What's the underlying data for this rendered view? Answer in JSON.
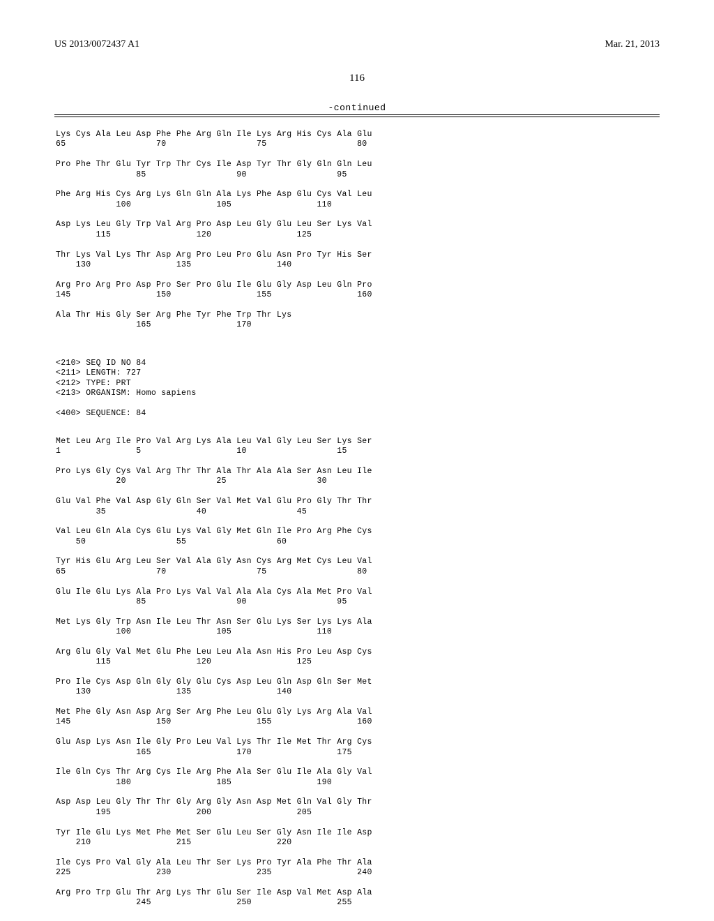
{
  "header": {
    "pub_number": "US 2013/0072437 A1",
    "pub_date": "Mar. 21, 2013"
  },
  "page_number": "116",
  "continued_label": "-continued",
  "seq83": {
    "blocks": [
      {
        "aa": "Lys Cys Ala Leu Asp Phe Phe Arg Gln Ile Lys Arg His Cys Ala Glu",
        "nums": "65                  70                  75                  80"
      },
      {
        "aa": "Pro Phe Thr Glu Tyr Trp Thr Cys Ile Asp Tyr Thr Gly Gln Gln Leu",
        "nums": "                85                  90                  95"
      },
      {
        "aa": "Phe Arg His Cys Arg Lys Gln Gln Ala Lys Phe Asp Glu Cys Val Leu",
        "nums": "            100                 105                 110"
      },
      {
        "aa": "Asp Lys Leu Gly Trp Val Arg Pro Asp Leu Gly Glu Leu Ser Lys Val",
        "nums": "        115                 120                 125"
      },
      {
        "aa": "Thr Lys Val Lys Thr Asp Arg Pro Leu Pro Glu Asn Pro Tyr His Ser",
        "nums": "    130                 135                 140"
      },
      {
        "aa": "Arg Pro Arg Pro Asp Pro Ser Pro Glu Ile Glu Gly Asp Leu Gln Pro",
        "nums": "145                 150                 155                 160"
      },
      {
        "aa": "Ala Thr His Gly Ser Arg Phe Tyr Phe Trp Thr Lys",
        "nums": "                165                 170"
      }
    ]
  },
  "seq84": {
    "header": [
      "<210> SEQ ID NO 84",
      "<211> LENGTH: 727",
      "<212> TYPE: PRT",
      "<213> ORGANISM: Homo sapiens",
      "",
      "<400> SEQUENCE: 84"
    ],
    "blocks": [
      {
        "aa": "Met Leu Arg Ile Pro Val Arg Lys Ala Leu Val Gly Leu Ser Lys Ser",
        "nums": "1               5                   10                  15"
      },
      {
        "aa": "Pro Lys Gly Cys Val Arg Thr Thr Ala Thr Ala Ala Ser Asn Leu Ile",
        "nums": "            20                  25                  30"
      },
      {
        "aa": "Glu Val Phe Val Asp Gly Gln Ser Val Met Val Glu Pro Gly Thr Thr",
        "nums": "        35                  40                  45"
      },
      {
        "aa": "Val Leu Gln Ala Cys Glu Lys Val Gly Met Gln Ile Pro Arg Phe Cys",
        "nums": "    50                  55                  60"
      },
      {
        "aa": "Tyr His Glu Arg Leu Ser Val Ala Gly Asn Cys Arg Met Cys Leu Val",
        "nums": "65                  70                  75                  80"
      },
      {
        "aa": "Glu Ile Glu Lys Ala Pro Lys Val Val Ala Ala Cys Ala Met Pro Val",
        "nums": "                85                  90                  95"
      },
      {
        "aa": "Met Lys Gly Trp Asn Ile Leu Thr Asn Ser Glu Lys Ser Lys Lys Ala",
        "nums": "            100                 105                 110"
      },
      {
        "aa": "Arg Glu Gly Val Met Glu Phe Leu Leu Ala Asn His Pro Leu Asp Cys",
        "nums": "        115                 120                 125"
      },
      {
        "aa": "Pro Ile Cys Asp Gln Gly Gly Glu Cys Asp Leu Gln Asp Gln Ser Met",
        "nums": "    130                 135                 140"
      },
      {
        "aa": "Met Phe Gly Asn Asp Arg Ser Arg Phe Leu Glu Gly Lys Arg Ala Val",
        "nums": "145                 150                 155                 160"
      },
      {
        "aa": "Glu Asp Lys Asn Ile Gly Pro Leu Val Lys Thr Ile Met Thr Arg Cys",
        "nums": "                165                 170                 175"
      },
      {
        "aa": "Ile Gln Cys Thr Arg Cys Ile Arg Phe Ala Ser Glu Ile Ala Gly Val",
        "nums": "            180                 185                 190"
      },
      {
        "aa": "Asp Asp Leu Gly Thr Thr Gly Arg Gly Asn Asp Met Gln Val Gly Thr",
        "nums": "        195                 200                 205"
      },
      {
        "aa": "Tyr Ile Glu Lys Met Phe Met Ser Glu Leu Ser Gly Asn Ile Ile Asp",
        "nums": "    210                 215                 220"
      },
      {
        "aa": "Ile Cys Pro Val Gly Ala Leu Thr Ser Lys Pro Tyr Ala Phe Thr Ala",
        "nums": "225                 230                 235                 240"
      },
      {
        "aa": "Arg Pro Trp Glu Thr Arg Lys Thr Glu Ser Ile Asp Val Met Asp Ala",
        "nums": "                245                 250                 255"
      }
    ]
  }
}
